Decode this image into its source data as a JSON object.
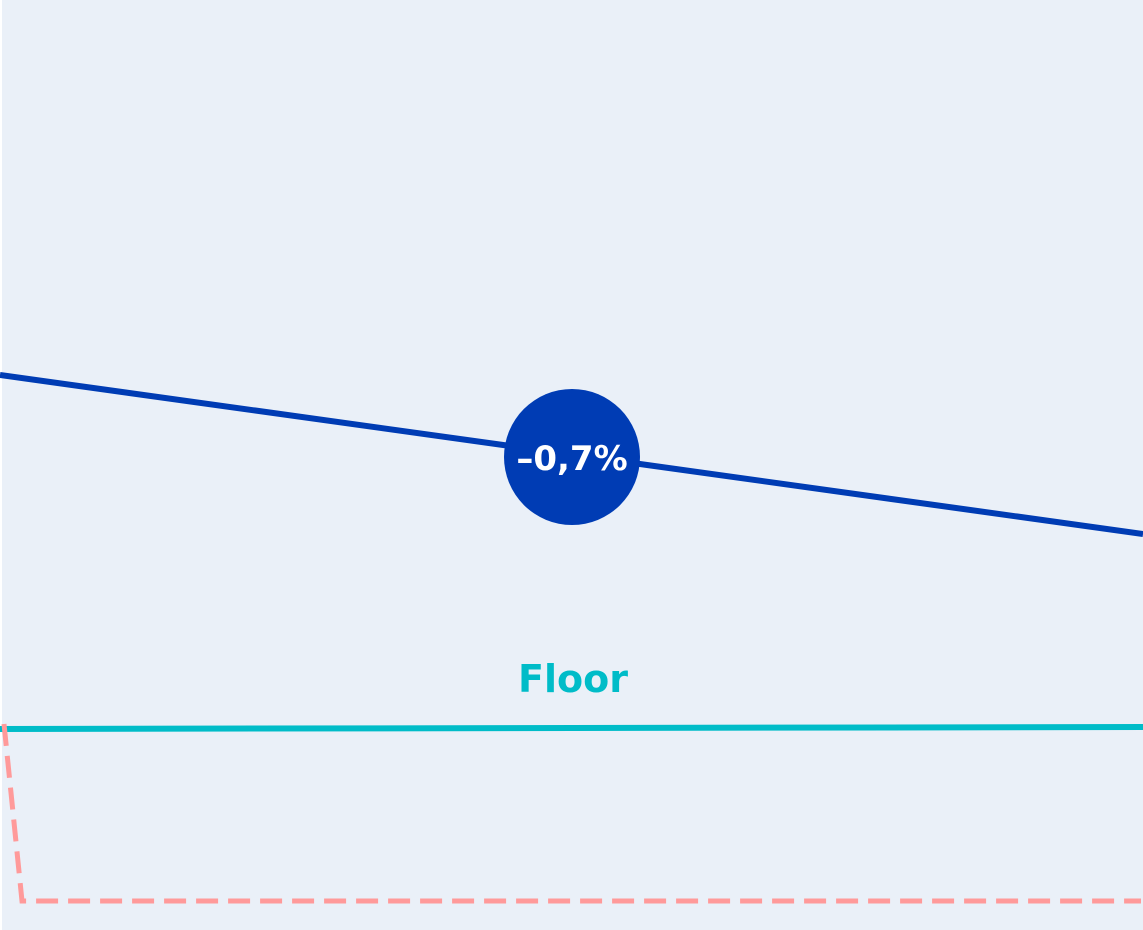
{
  "slope": {
    "label": "–0,7%",
    "color": "#003cb4"
  },
  "floor": {
    "label": "Floor",
    "color": "#00bcc8"
  },
  "outline": {
    "color": "#ff9a9a"
  },
  "background": "#eaf0f8"
}
